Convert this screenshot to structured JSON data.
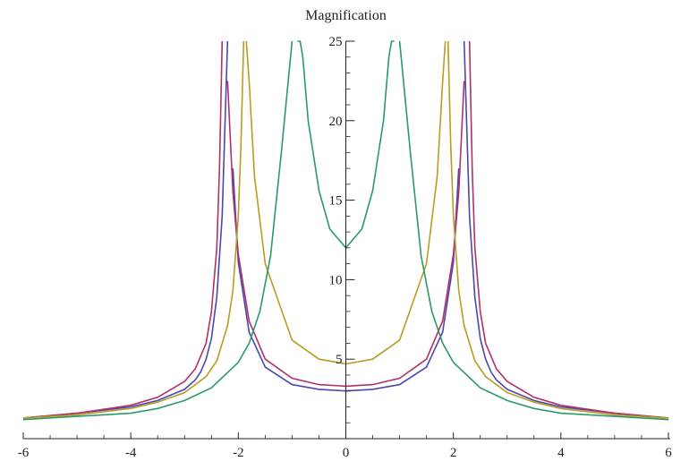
{
  "chart_data": {
    "type": "line",
    "title": "",
    "ylabel": "Magnification",
    "xlabel": "",
    "xlim": [
      -6,
      6
    ],
    "ylim": [
      0,
      25
    ],
    "grid": false,
    "x_ticks": [
      -6,
      -4,
      -2,
      0,
      2,
      4,
      6
    ],
    "y_ticks": [
      5,
      10,
      15,
      20,
      25
    ],
    "x_tick_labels": [
      "-6",
      "-4",
      "-2",
      "0",
      "2",
      "4",
      "6"
    ],
    "y_tick_labels": [
      "5",
      "10",
      "15",
      "20",
      "25"
    ],
    "series": [
      {
        "color": "#4a47b0",
        "x": [
          0,
          0.5,
          1.0,
          1.5,
          1.8,
          2.0,
          2.1,
          2.2,
          2.3,
          2.4,
          2.5,
          2.6,
          2.7,
          2.8,
          3.0,
          3.5,
          4.0,
          5.0,
          6.0
        ],
        "y": [
          3.0,
          3.1,
          3.4,
          4.5,
          6.7,
          11.1,
          17.0,
          25.0,
          14.0,
          8.9,
          6.3,
          5.0,
          4.2,
          3.7,
          3.1,
          2.4,
          2.0,
          1.6,
          1.3
        ],
        "pole": 2.2
      },
      {
        "color": "#b0306a",
        "x": [
          0,
          0.5,
          1.0,
          1.5,
          1.8,
          2.0,
          2.1,
          2.2,
          2.3,
          2.35,
          2.4,
          2.5,
          2.6,
          2.8,
          3.0,
          3.5,
          4.0,
          5.0,
          6.0
        ],
        "y": [
          3.3,
          3.4,
          3.8,
          5.0,
          7.4,
          11.6,
          15.5,
          22.5,
          25.0,
          17.0,
          12.0,
          8.0,
          6.0,
          4.4,
          3.6,
          2.6,
          2.1,
          1.6,
          1.3
        ],
        "pole": 2.3
      },
      {
        "color": "#b79c21",
        "x": [
          0,
          0.5,
          1.0,
          1.5,
          1.7,
          1.8,
          1.85,
          1.9,
          1.95,
          2.0,
          2.1,
          2.2,
          2.4,
          2.6,
          3.0,
          3.5,
          4.0,
          5.0,
          6.0
        ],
        "y": [
          4.7,
          5.0,
          6.2,
          11.0,
          16.5,
          22.5,
          25.0,
          25.0,
          18.5,
          14.0,
          9.3,
          7.1,
          4.9,
          3.9,
          2.9,
          2.3,
          1.9,
          1.5,
          1.3
        ],
        "pole": 1.9
      },
      {
        "color": "#2a9a6a",
        "x": [
          0,
          0.3,
          0.5,
          0.7,
          0.8,
          0.85,
          0.9,
          1.0,
          1.2,
          1.4,
          1.6,
          1.8,
          2.0,
          2.5,
          3.0,
          3.5,
          4.0,
          5.0,
          6.0
        ],
        "y": [
          12.0,
          13.2,
          15.6,
          20.0,
          24.0,
          25.0,
          25.0,
          25.0,
          18.0,
          11.5,
          8.0,
          6.0,
          4.8,
          3.2,
          2.4,
          1.9,
          1.6,
          1.4,
          1.2
        ],
        "pole": 0.95
      }
    ]
  }
}
